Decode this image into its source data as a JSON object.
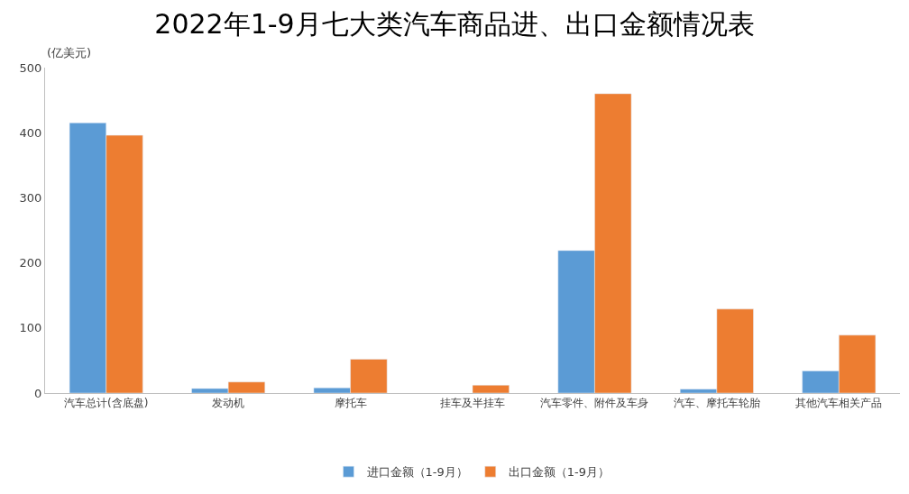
{
  "chart_data": {
    "type": "bar",
    "title": "2022年1-9月七大类汽车商品进、出口金额情况表",
    "ylabel": "(亿美元)",
    "categories": [
      "汽车总计(含底盘)",
      "发动机",
      "摩托车",
      "挂车及半挂车",
      "汽车零件、附件及车身",
      "汽车、摩托车轮胎",
      "其他汽车相关产品"
    ],
    "series": [
      {
        "name": "进口金额（1-9月）",
        "color": "#5b9bd5",
        "values": [
          415,
          7,
          8,
          null,
          219,
          6,
          34
        ]
      },
      {
        "name": "出口金额（1-9月）",
        "color": "#ed7d31",
        "values": [
          396,
          17,
          52,
          12,
          460,
          129,
          89
        ]
      }
    ],
    "ylim": [
      0,
      500
    ],
    "yticks": [
      0,
      100,
      200,
      300,
      400,
      500
    ],
    "legend": "bottom"
  }
}
